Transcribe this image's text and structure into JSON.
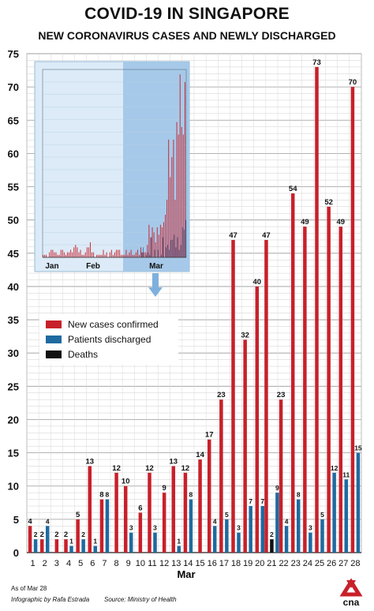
{
  "title": "COVID-19 IN SINGAPORE",
  "subtitle": "NEW CORONAVIRUS CASES AND NEWLY DISCHARGED",
  "footer": {
    "as_of": "As of Mar 28",
    "credit": "Infographic by Rafa Estrada",
    "source": "Source: Ministry of Health"
  },
  "logo": {
    "text": "cna",
    "icon": "cna-logo-icon"
  },
  "colors": {
    "new_cases": "#c8202a",
    "discharged": "#1f6aa0",
    "deaths": "#111111",
    "inset_bg": "#dcebf7",
    "inset_highlight": "#9cc3e6"
  },
  "legend": {
    "new_cases": "New cases confirmed",
    "discharged": "Patients discharged",
    "deaths": "Deaths"
  },
  "inset": {
    "labels": [
      "Jan",
      "Feb",
      "Mar"
    ],
    "icon": "down-arrow-icon"
  },
  "chart_data": {
    "type": "bar",
    "xlabel": "Mar",
    "ylabel": "",
    "ylim": [
      0,
      75
    ],
    "yticks": [
      0,
      5,
      10,
      15,
      20,
      25,
      30,
      35,
      40,
      45,
      50,
      55,
      60,
      65,
      70,
      75
    ],
    "categories": [
      "1",
      "2",
      "3",
      "4",
      "5",
      "6",
      "7",
      "8",
      "9",
      "10",
      "11",
      "12",
      "13",
      "14",
      "15",
      "16",
      "17",
      "18",
      "19",
      "20",
      "21",
      "22",
      "23",
      "24",
      "25",
      "26",
      "27",
      "28"
    ],
    "series": [
      {
        "name": "New cases confirmed",
        "values": [
          4,
          2,
          2,
          2,
          5,
          13,
          8,
          12,
          10,
          6,
          12,
          9,
          13,
          12,
          14,
          17,
          23,
          47,
          32,
          40,
          47,
          23,
          54,
          49,
          73,
          52,
          49,
          70
        ]
      },
      {
        "name": "Patients discharged",
        "values": [
          2,
          4,
          null,
          1,
          2,
          1,
          8,
          null,
          3,
          null,
          3,
          null,
          1,
          8,
          null,
          4,
          5,
          3,
          7,
          7,
          9,
          4,
          8,
          3,
          5,
          12,
          11,
          15
        ]
      },
      {
        "name": "Deaths",
        "values": [
          null,
          null,
          null,
          null,
          null,
          null,
          null,
          null,
          null,
          null,
          null,
          null,
          null,
          null,
          null,
          null,
          null,
          null,
          null,
          null,
          2,
          null,
          null,
          null,
          null,
          null,
          null,
          null
        ]
      }
    ],
    "grid": true,
    "legend_position": "middle-left"
  }
}
